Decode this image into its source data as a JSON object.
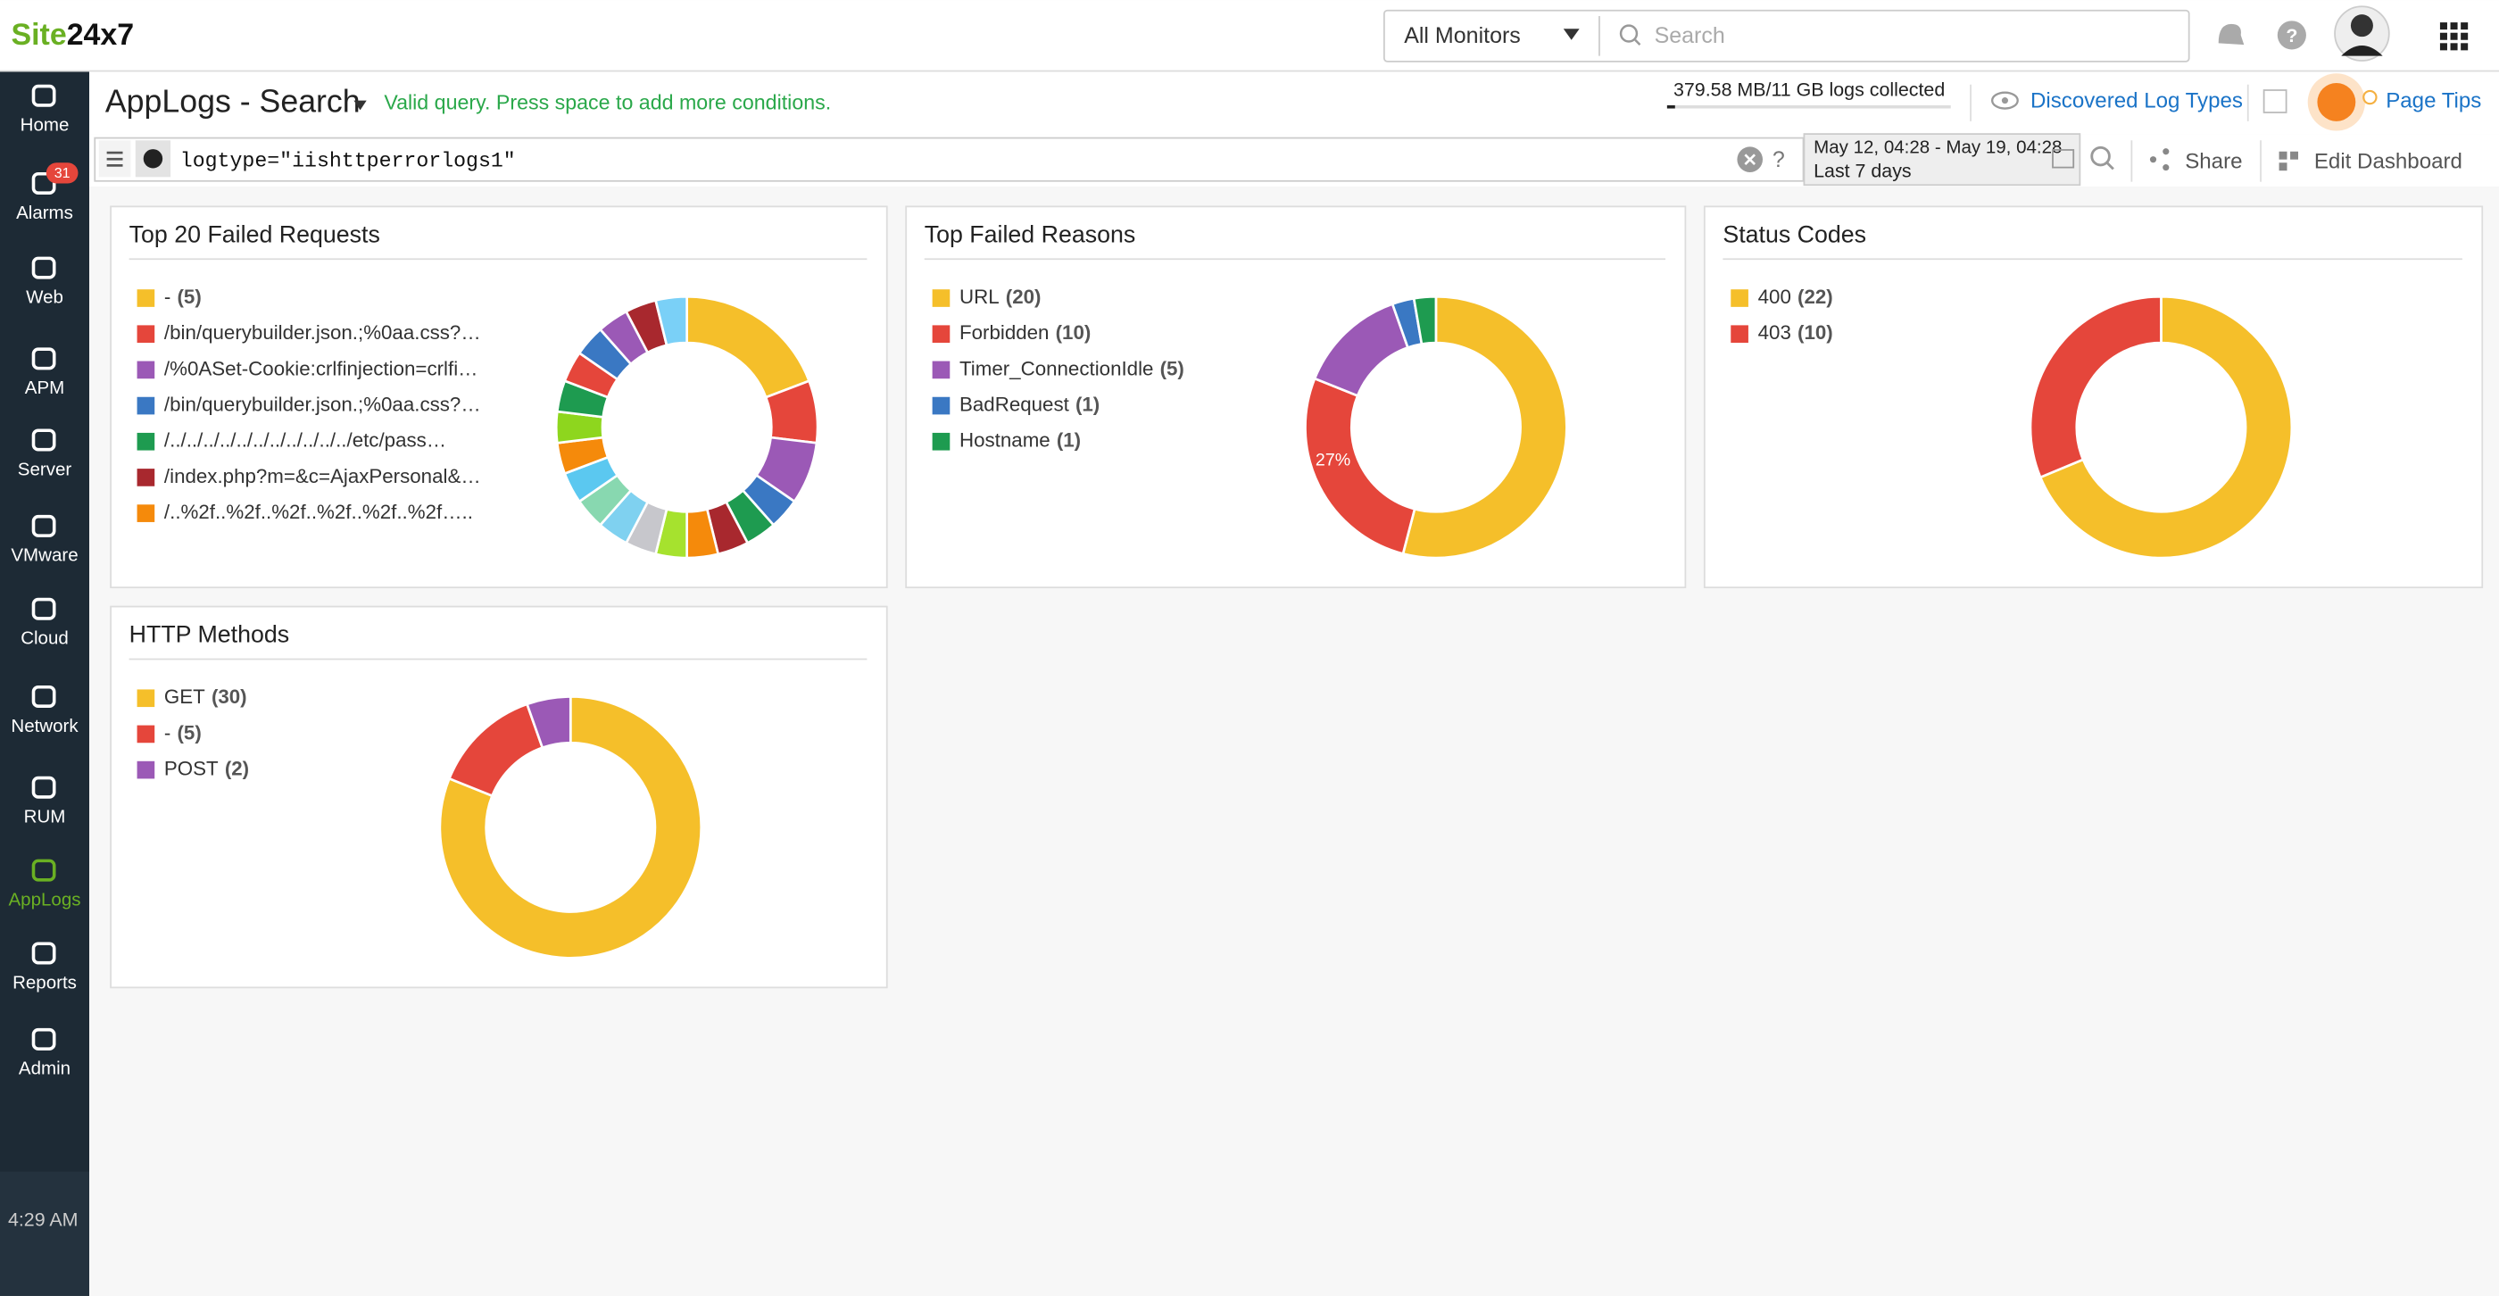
{
  "header": {
    "logo": [
      "Site",
      "24x7"
    ],
    "monitor_select": "All Monitors",
    "search_placeholder": "Search"
  },
  "nav": {
    "items": [
      "Home",
      "Alarms",
      "Web",
      "APM",
      "Server",
      "VMware",
      "Cloud",
      "Network",
      "RUM",
      "AppLogs",
      "Reports",
      "Admin"
    ],
    "alarm_badge": "31",
    "time": "4:29 AM"
  },
  "toolbar": {
    "title": "AppLogs - Search",
    "status": "Valid query. Press space to add more conditions.",
    "usage": "379.58 MB/11 GB logs collected",
    "discovered": "Discovered Log Types",
    "page_tips": "Page Tips",
    "query": "logtype=\"iishttperrorlogs1\"",
    "help": "?",
    "date_range": "May 12, 04:28 - May 19, 04:28",
    "period": "Last 7 days",
    "share": "Share",
    "edit": "Edit Dashboard"
  },
  "widgets": [
    {
      "type": "donut",
      "title": "Top 20 Failed Requests",
      "legend": [
        {
          "name": "-",
          "count": "(5)"
        },
        {
          "name": "/bin/querybuilder.json.;%0aa.css?…"
        },
        {
          "name": "/%0ASet-Cookie:crlfinjection=crlfi…"
        },
        {
          "name": "/bin/querybuilder.json.;%0aa.css?…"
        },
        {
          "name": "/../../../../../../../../../../../etc/pass…"
        },
        {
          "name": "/index.php?m=&c=AjaxPersonal&…"
        },
        {
          "name": "/..%2f..%2f..%2f..%2f..%2f..%2f….."
        }
      ],
      "values": [
        5,
        2,
        2,
        1,
        1,
        1,
        1,
        1,
        1,
        1,
        1,
        1,
        1,
        1,
        1,
        1,
        1,
        1,
        1,
        1
      ],
      "colors": [
        "#f5bf2a",
        "#e5463b",
        "#9b59b6",
        "#3a78c3",
        "#1e9b50",
        "#a8282e",
        "#f58a0b",
        "#a6e22e",
        "#c7c7cc",
        "#7fd1f0",
        "#88d8b0",
        "#5bc8f0",
        "#f58a0b",
        "#8ed61e",
        "#1e9b50",
        "#e5463b",
        "#3a78c3",
        "#9b59b6",
        "#a8282e",
        "#7ad0f7"
      ]
    },
    {
      "type": "donut",
      "title": "Top Failed Reasons",
      "legend": [
        {
          "name": "URL",
          "count": "(20)"
        },
        {
          "name": "Forbidden",
          "count": "(10)"
        },
        {
          "name": "Timer_ConnectionIdle",
          "count": "(5)"
        },
        {
          "name": "BadRequest",
          "count": "(1)"
        },
        {
          "name": "Hostname",
          "count": "(1)"
        }
      ],
      "values": [
        20,
        10,
        5,
        1,
        1
      ],
      "colors": [
        "#f5bf2a",
        "#e5463b",
        "#9b59b6",
        "#3a78c3",
        "#1e9b50"
      ],
      "annotation": "27%"
    },
    {
      "type": "donut",
      "title": "Status Codes",
      "legend": [
        {
          "name": "400",
          "count": "(22)"
        },
        {
          "name": "403",
          "count": "(10)"
        }
      ],
      "values": [
        22,
        10
      ],
      "colors": [
        "#f5bf2a",
        "#e5463b"
      ]
    },
    {
      "type": "donut",
      "title": "HTTP Methods",
      "legend": [
        {
          "name": "GET",
          "count": "(30)"
        },
        {
          "name": "-",
          "count": "(5)"
        },
        {
          "name": "POST",
          "count": "(2)"
        }
      ],
      "values": [
        30,
        5,
        2
      ],
      "colors": [
        "#f5bf2a",
        "#e5463b",
        "#9b59b6"
      ]
    }
  ]
}
